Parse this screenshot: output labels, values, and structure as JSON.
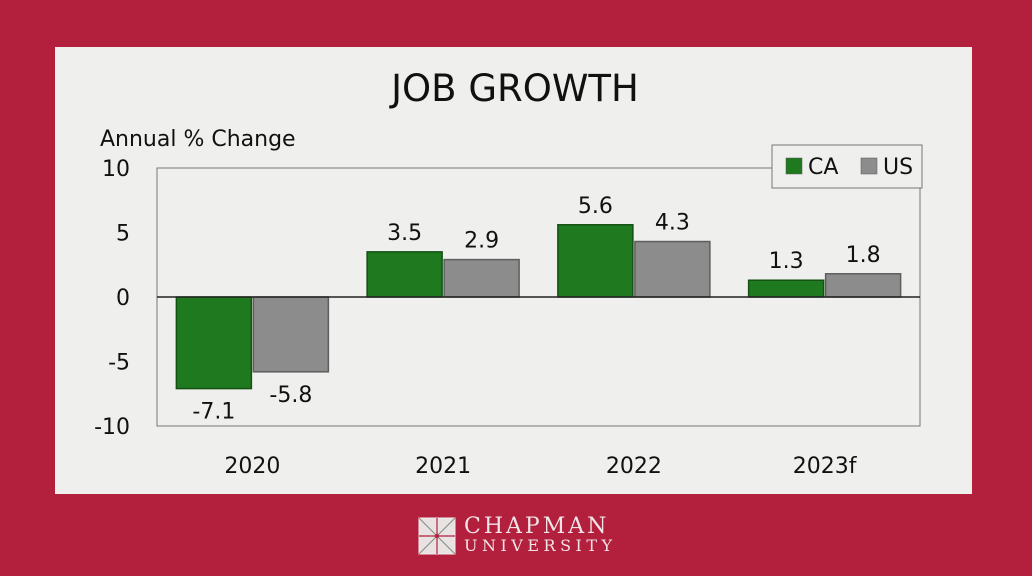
{
  "chart_data": {
    "type": "bar",
    "title": "JOB GROWTH",
    "ylabel": "Annual % Change",
    "xlabel": "",
    "categories": [
      "2020",
      "2021",
      "2022",
      "2023f"
    ],
    "series": [
      {
        "name": "CA",
        "values": [
          -7.1,
          3.5,
          5.6,
          1.3
        ],
        "color": "#1f7a1f"
      },
      {
        "name": "US",
        "values": [
          -5.8,
          2.9,
          4.3,
          1.8
        ],
        "color": "#8c8c8c"
      }
    ],
    "ylim": [
      -10,
      10
    ],
    "yticks": [
      10,
      5,
      0,
      -5,
      -10
    ],
    "grid": false,
    "legend": "top-right",
    "data_labels": true
  },
  "branding": {
    "line1": "CHAPMAN",
    "line2": "UNIVERSITY"
  },
  "colors": {
    "background": "#b3203d",
    "panel": "#efefed"
  }
}
